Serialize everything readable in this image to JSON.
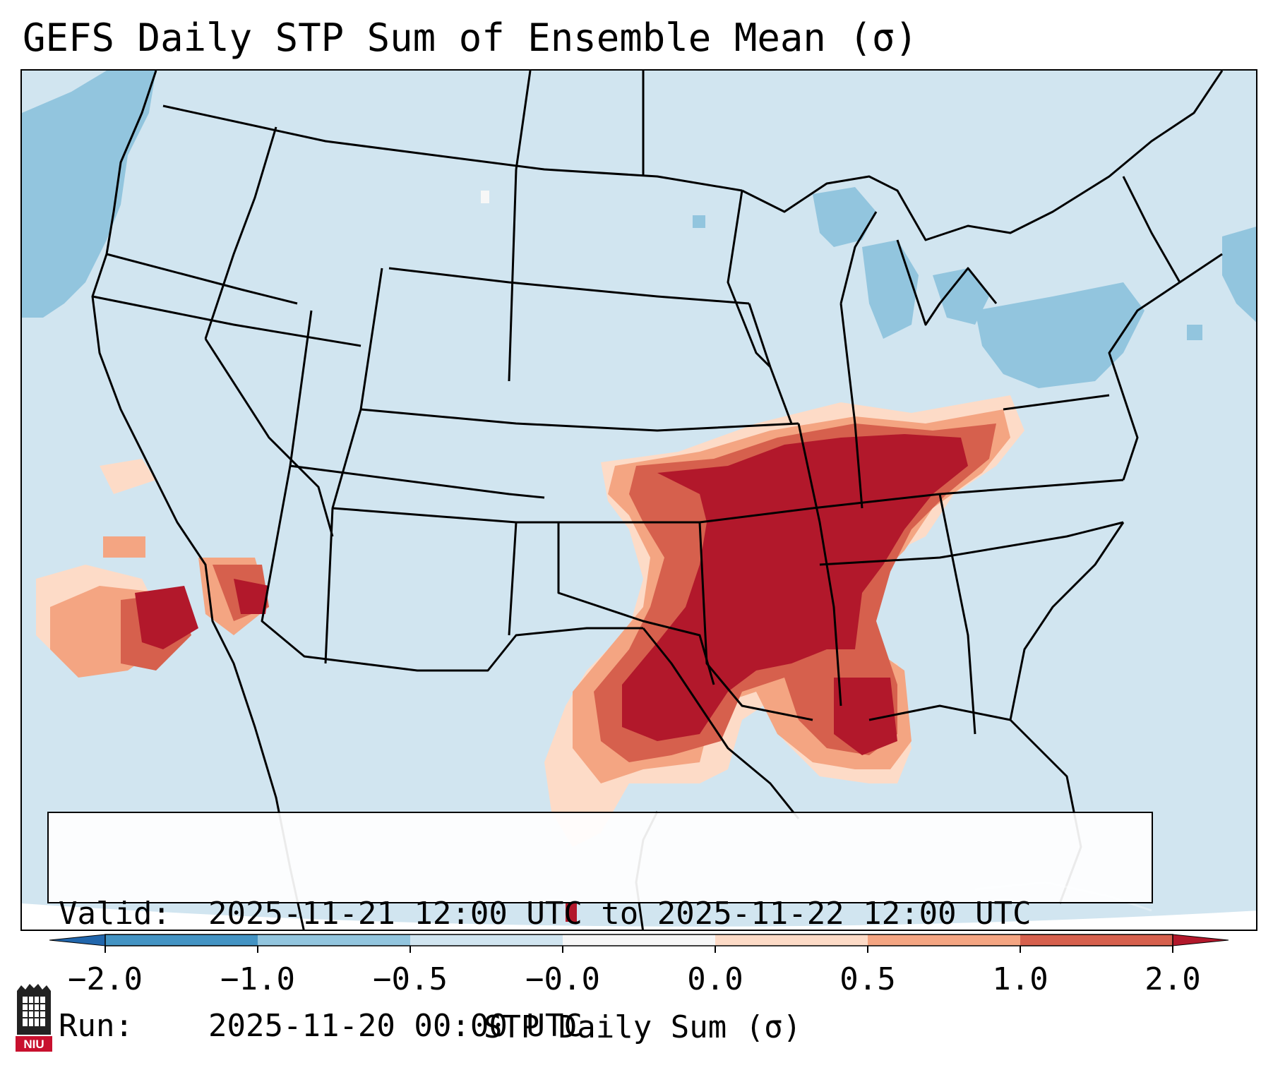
{
  "title": "GEFS Daily STP Sum of Ensemble Mean (σ)",
  "valid_label": "Valid:",
  "valid_value": "2025-11-21 12:00 UTC to 2025-11-22 12:00 UTC",
  "run_label": "Run:",
  "run_value": "2025-11-20 00:00 UTC",
  "colorbar": {
    "label": "STP Daily Sum (σ)",
    "ticks": [
      "−2.0",
      "−1.0",
      "−0.5",
      "−0.0",
      "0.0",
      "0.5",
      "1.0",
      "2.0"
    ],
    "bins": [
      {
        "range": "< -2.0",
        "color": "#2166ac"
      },
      {
        "range": "-2.0 to -1.0",
        "color": "#4393c3"
      },
      {
        "range": "-1.0 to -0.5",
        "color": "#92c5de"
      },
      {
        "range": "-0.5 to -0.0",
        "color": "#d1e5f0"
      },
      {
        "range": "-0.0 to 0.0",
        "color": "#f7f7f7"
      },
      {
        "range": "0.0 to 0.5",
        "color": "#fddbc7"
      },
      {
        "range": "0.5 to 1.0",
        "color": "#f4a582"
      },
      {
        "range": "1.0 to 2.0",
        "color": "#d6604d"
      },
      {
        "range": "> 2.0",
        "color": "#b2182b"
      }
    ]
  },
  "colors": {
    "background_field": "#d1e5f0",
    "negative_light": "#92c5de",
    "positive_light": "#fddbc7",
    "positive_mid": "#f4a582",
    "positive_strong": "#d6604d",
    "positive_max": "#b2182b",
    "border_lines": "#000000"
  },
  "logo_text": "NIU",
  "icons": {
    "logo": "niu-university-logo-icon"
  }
}
